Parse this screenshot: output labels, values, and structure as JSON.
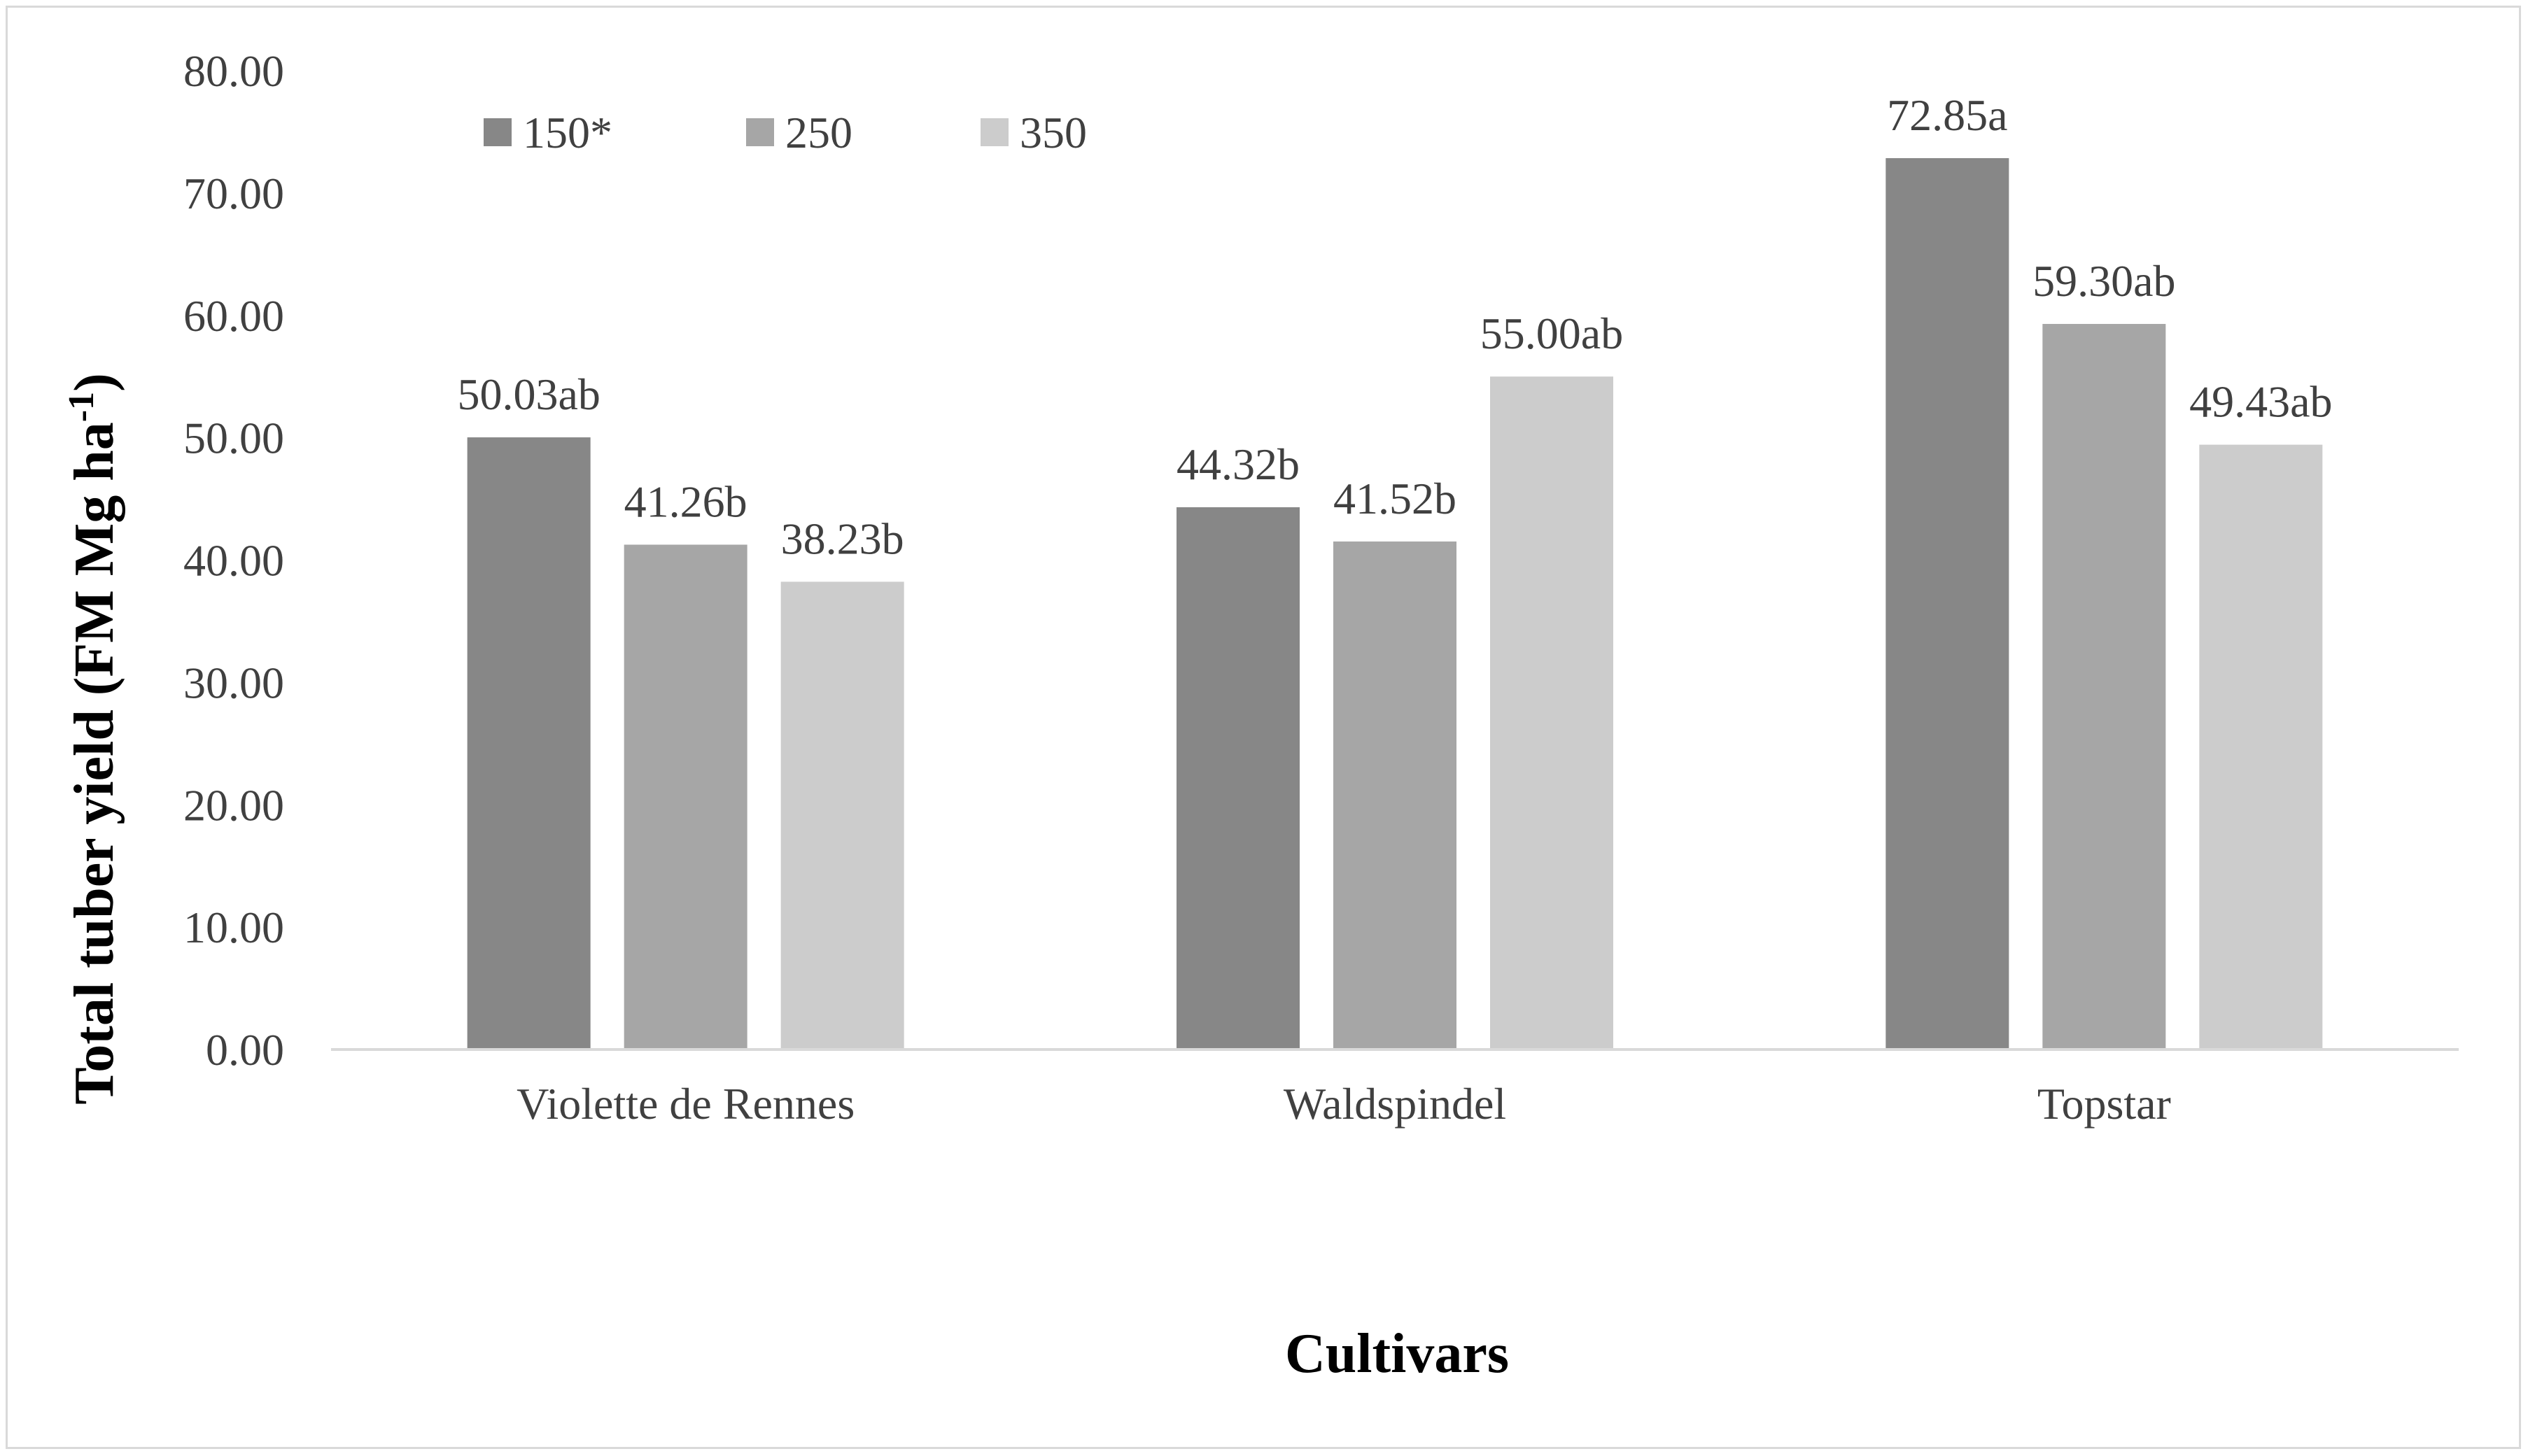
{
  "chart_data": {
    "type": "bar",
    "title": "",
    "xlabel": "Cultivars",
    "ylabel": "Total tuber yield (FM Mg ha",
    "ylabel_superscript": "-1",
    "ylabel_close": ")",
    "ylim": [
      0,
      80
    ],
    "ytick_step": 10,
    "ytick_labels": [
      "0.00",
      "10.00",
      "20.00",
      "30.00",
      "40.00",
      "50.00",
      "60.00",
      "70.00",
      "80.00"
    ],
    "categories": [
      "Violette de Rennes",
      "Waldspindel",
      "Topstar"
    ],
    "legend_position": "top-left",
    "series": [
      {
        "name": "150*",
        "color": "#878787",
        "values": [
          50.03,
          44.32,
          72.85
        ],
        "labels": [
          "50.03ab",
          "44.32b",
          "72.85a"
        ]
      },
      {
        "name": "250",
        "color": "#a6a6a6",
        "values": [
          41.26,
          41.52,
          59.3
        ],
        "labels": [
          "41.26b",
          "41.52b",
          "59.30ab"
        ]
      },
      {
        "name": "350",
        "color": "#cccccc",
        "values": [
          38.23,
          55.0,
          49.43
        ],
        "labels": [
          "38.23b",
          "55.00ab",
          "49.43ab"
        ]
      }
    ],
    "grid": false
  }
}
